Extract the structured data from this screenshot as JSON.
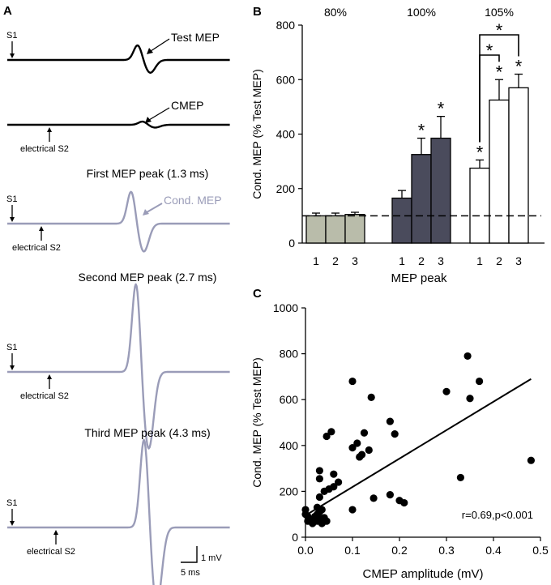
{
  "panel_a": {
    "letter": "A",
    "scale_bar": {
      "voltage": "1 mV",
      "time": "5 ms"
    },
    "traces": [
      {
        "title": "",
        "s1": "S1",
        "s2": "",
        "annotation": "Test MEP",
        "color": "#000000",
        "peak_mv": 0.55
      },
      {
        "title": "",
        "s1": "",
        "s2": "electrical S2",
        "annotation": "CMEP",
        "color": "#000000",
        "peak_mv": 0.12
      },
      {
        "title": "First MEP peak (1.3 ms)",
        "s1": "S1",
        "s2": "electrical S2",
        "annotation": "Cond. MEP",
        "color": "#9a9cb8",
        "peak_mv": 1.2
      },
      {
        "title": "Second MEP peak (2.7 ms)",
        "s1": "S1",
        "s2": "electrical S2",
        "annotation": "",
        "color": "#9a9cb8",
        "peak_mv": 3.3
      },
      {
        "title": "Third MEP peak (4.3 ms)",
        "s1": "S1",
        "s2": "electrical S2",
        "annotation": "",
        "color": "#9a9cb8",
        "peak_mv": 3.3
      }
    ]
  },
  "chart_data": [
    {
      "panel": "B",
      "type": "bar",
      "ylabel": "Cond. MEP (% Test MEP)",
      "xlabel": "MEP peak",
      "ylim": [
        0,
        800
      ],
      "yticks": [
        0,
        200,
        400,
        600,
        800
      ],
      "reference_line": 100,
      "groups": [
        {
          "name": "80%",
          "color": "#b9bcaa",
          "categories": [
            "1",
            "2",
            "3"
          ],
          "values": [
            100,
            100,
            105
          ],
          "errors": [
            10,
            10,
            8
          ],
          "sig": [
            false,
            false,
            false
          ]
        },
        {
          "name": "100%",
          "color": "#4a4b5c",
          "categories": [
            "1",
            "2",
            "3"
          ],
          "values": [
            165,
            325,
            385
          ],
          "errors": [
            28,
            60,
            80
          ],
          "sig": [
            false,
            true,
            true
          ]
        },
        {
          "name": "105%",
          "color": "#ffffff",
          "categories": [
            "1",
            "2",
            "3"
          ],
          "values": [
            275,
            525,
            570
          ],
          "errors": [
            30,
            75,
            50
          ],
          "sig": [
            true,
            true,
            true
          ]
        }
      ],
      "brackets": [
        {
          "group": "105%",
          "from": 0,
          "to": 1,
          "label": "*"
        },
        {
          "group": "105%",
          "from": 0,
          "to": 2,
          "label": "*"
        }
      ]
    },
    {
      "panel": "C",
      "type": "scatter",
      "xlabel": "CMEP amplitude (mV)",
      "ylabel": "Cond. MEP (% Test MEP)",
      "xlim": [
        0,
        0.5
      ],
      "ylim": [
        0,
        1000
      ],
      "xticks": [
        0.0,
        0.1,
        0.2,
        0.3,
        0.4,
        0.5
      ],
      "xtick_labels": [
        "0.0",
        "0.1",
        "0.2",
        "0.3",
        "0.4",
        "0.5"
      ],
      "yticks": [
        0,
        200,
        400,
        600,
        800,
        1000
      ],
      "annotation": "r=0.69,p<0.001",
      "fit_line": {
        "x": [
          0.0,
          0.48
        ],
        "y": [
          95,
          690
        ]
      },
      "points": [
        [
          0.0,
          120
        ],
        [
          0.0,
          100
        ],
        [
          0.005,
          70
        ],
        [
          0.005,
          90
        ],
        [
          0.01,
          75
        ],
        [
          0.015,
          60
        ],
        [
          0.02,
          80
        ],
        [
          0.02,
          90
        ],
        [
          0.025,
          70
        ],
        [
          0.025,
          100
        ],
        [
          0.025,
          130
        ],
        [
          0.03,
          70
        ],
        [
          0.03,
          110
        ],
        [
          0.03,
          175
        ],
        [
          0.035,
          60
        ],
        [
          0.035,
          80
        ],
        [
          0.035,
          120
        ],
        [
          0.04,
          85
        ],
        [
          0.04,
          200
        ],
        [
          0.045,
          70
        ],
        [
          0.045,
          440
        ],
        [
          0.05,
          210
        ],
        [
          0.055,
          460
        ],
        [
          0.06,
          275
        ],
        [
          0.06,
          220
        ],
        [
          0.07,
          240
        ],
        [
          0.03,
          290
        ],
        [
          0.03,
          255
        ],
        [
          0.1,
          120
        ],
        [
          0.1,
          680
        ],
        [
          0.1,
          390
        ],
        [
          0.11,
          410
        ],
        [
          0.115,
          350
        ],
        [
          0.12,
          360
        ],
        [
          0.125,
          455
        ],
        [
          0.135,
          380
        ],
        [
          0.14,
          610
        ],
        [
          0.145,
          170
        ],
        [
          0.18,
          185
        ],
        [
          0.18,
          505
        ],
        [
          0.19,
          450
        ],
        [
          0.2,
          160
        ],
        [
          0.21,
          150
        ],
        [
          0.3,
          635
        ],
        [
          0.33,
          260
        ],
        [
          0.345,
          790
        ],
        [
          0.35,
          605
        ],
        [
          0.37,
          680
        ],
        [
          0.48,
          335
        ]
      ]
    }
  ],
  "colors": {
    "dark_bar": "#4a4b5c",
    "light_bar": "#b9bcaa",
    "trace_gray": "#9a9cb8"
  }
}
